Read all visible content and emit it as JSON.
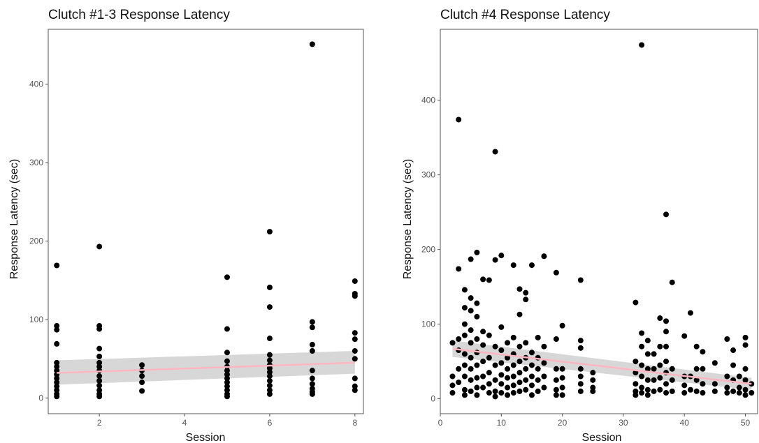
{
  "chart_data": [
    {
      "type": "scatter",
      "title": "Clutch #1-3 Response Latency",
      "xlabel": "Session",
      "ylabel": "Response Latency (sec)",
      "xlim": [
        0.8,
        8.2
      ],
      "ylim": [
        -20,
        470
      ],
      "xticks": [
        2,
        4,
        6,
        8
      ],
      "yticks": [
        0,
        100,
        200,
        300,
        400
      ],
      "grid": false,
      "trend": {
        "x": [
          1,
          8
        ],
        "y": [
          32,
          45
        ],
        "ci_low": [
          17,
          31
        ],
        "ci_high": [
          48,
          60
        ]
      },
      "points": [
        [
          1,
          169
        ],
        [
          1,
          92
        ],
        [
          1,
          87
        ],
        [
          1,
          69
        ],
        [
          1,
          45
        ],
        [
          1,
          40
        ],
        [
          1,
          35
        ],
        [
          1,
          30
        ],
        [
          1,
          25
        ],
        [
          1,
          20
        ],
        [
          1,
          15
        ],
        [
          1,
          10
        ],
        [
          1,
          5
        ],
        [
          1,
          2
        ],
        [
          2,
          193
        ],
        [
          2,
          92
        ],
        [
          2,
          88
        ],
        [
          2,
          63
        ],
        [
          2,
          53
        ],
        [
          2,
          45
        ],
        [
          2,
          40
        ],
        [
          2,
          35
        ],
        [
          2,
          28
        ],
        [
          2,
          22
        ],
        [
          2,
          16
        ],
        [
          2,
          10
        ],
        [
          2,
          5
        ],
        [
          2,
          2
        ],
        [
          3,
          42
        ],
        [
          3,
          35
        ],
        [
          3,
          28
        ],
        [
          3,
          20
        ],
        [
          3,
          9
        ],
        [
          5,
          154
        ],
        [
          5,
          88
        ],
        [
          5,
          58
        ],
        [
          5,
          47
        ],
        [
          5,
          40
        ],
        [
          5,
          35
        ],
        [
          5,
          30
        ],
        [
          5,
          25
        ],
        [
          5,
          20
        ],
        [
          5,
          15
        ],
        [
          5,
          10
        ],
        [
          5,
          5
        ],
        [
          5,
          2
        ],
        [
          6,
          212
        ],
        [
          6,
          141
        ],
        [
          6,
          116
        ],
        [
          6,
          76
        ],
        [
          6,
          55
        ],
        [
          6,
          48
        ],
        [
          6,
          42
        ],
        [
          6,
          38
        ],
        [
          6,
          33
        ],
        [
          6,
          28
        ],
        [
          6,
          22
        ],
        [
          6,
          16
        ],
        [
          6,
          10
        ],
        [
          6,
          5
        ],
        [
          7,
          451
        ],
        [
          7,
          97
        ],
        [
          7,
          90
        ],
        [
          7,
          68
        ],
        [
          7,
          60
        ],
        [
          7,
          35
        ],
        [
          7,
          25
        ],
        [
          7,
          18
        ],
        [
          7,
          12
        ],
        [
          7,
          8
        ],
        [
          7,
          5
        ],
        [
          8,
          149
        ],
        [
          8,
          133
        ],
        [
          8,
          130
        ],
        [
          8,
          83
        ],
        [
          8,
          75
        ],
        [
          8,
          60
        ],
        [
          8,
          50
        ],
        [
          8,
          25
        ],
        [
          8,
          15
        ],
        [
          8,
          10
        ]
      ]
    },
    {
      "type": "scatter",
      "title": "Clutch #4 Response Latency",
      "xlabel": "Session",
      "ylabel": "Response Latency (sec)",
      "xlim": [
        0,
        52
      ],
      "ylim": [
        -20,
        495
      ],
      "xticks": [
        0,
        10,
        20,
        30,
        40,
        50
      ],
      "yticks": [
        0,
        100,
        200,
        300,
        400
      ],
      "grid": false,
      "trend": {
        "x": [
          2,
          51
        ],
        "y": [
          67,
          20
        ],
        "ci_low": [
          56,
          12
        ],
        "ci_high": [
          78,
          28
        ]
      },
      "points": [
        [
          2,
          75
        ],
        [
          2,
          30
        ],
        [
          2,
          18
        ],
        [
          2,
          8
        ],
        [
          3,
          374
        ],
        [
          3,
          174
        ],
        [
          3,
          80
        ],
        [
          3,
          65
        ],
        [
          3,
          40
        ],
        [
          3,
          22
        ],
        [
          4,
          146
        ],
        [
          4,
          122
        ],
        [
          4,
          100
        ],
        [
          4,
          85
        ],
        [
          4,
          60
        ],
        [
          4,
          45
        ],
        [
          4,
          30
        ],
        [
          4,
          12
        ],
        [
          4,
          5
        ],
        [
          5,
          187
        ],
        [
          5,
          135
        ],
        [
          5,
          118
        ],
        [
          5,
          92
        ],
        [
          5,
          75
        ],
        [
          5,
          55
        ],
        [
          5,
          40
        ],
        [
          5,
          25
        ],
        [
          5,
          10
        ],
        [
          6,
          196
        ],
        [
          6,
          128
        ],
        [
          6,
          110
        ],
        [
          6,
          80
        ],
        [
          6,
          62
        ],
        [
          6,
          45
        ],
        [
          6,
          28
        ],
        [
          6,
          15
        ],
        [
          6,
          5
        ],
        [
          7,
          160
        ],
        [
          7,
          90
        ],
        [
          7,
          72
        ],
        [
          7,
          50
        ],
        [
          7,
          30
        ],
        [
          7,
          15
        ],
        [
          8,
          159
        ],
        [
          8,
          85
        ],
        [
          8,
          55
        ],
        [
          8,
          35
        ],
        [
          8,
          20
        ],
        [
          8,
          8
        ],
        [
          9,
          331
        ],
        [
          9,
          186
        ],
        [
          9,
          70
        ],
        [
          9,
          45
        ],
        [
          9,
          25
        ],
        [
          9,
          10
        ],
        [
          9,
          3
        ],
        [
          10,
          192
        ],
        [
          10,
          96
        ],
        [
          10,
          65
        ],
        [
          10,
          48
        ],
        [
          10,
          32
        ],
        [
          10,
          20
        ],
        [
          10,
          8
        ],
        [
          11,
          75
        ],
        [
          11,
          55
        ],
        [
          11,
          40
        ],
        [
          11,
          28
        ],
        [
          11,
          15
        ],
        [
          11,
          5
        ],
        [
          12,
          179
        ],
        [
          12,
          82
        ],
        [
          12,
          60
        ],
        [
          12,
          45
        ],
        [
          12,
          30
        ],
        [
          12,
          18
        ],
        [
          12,
          8
        ],
        [
          13,
          147
        ],
        [
          13,
          113
        ],
        [
          13,
          70
        ],
        [
          13,
          50
        ],
        [
          13,
          35
        ],
        [
          13,
          22
        ],
        [
          13,
          10
        ],
        [
          14,
          142
        ],
        [
          14,
          133
        ],
        [
          14,
          75
        ],
        [
          14,
          55
        ],
        [
          14,
          40
        ],
        [
          14,
          25
        ],
        [
          14,
          12
        ],
        [
          15,
          179
        ],
        [
          15,
          62
        ],
        [
          15,
          45
        ],
        [
          15,
          30
        ],
        [
          15,
          18
        ],
        [
          15,
          5
        ],
        [
          16,
          82
        ],
        [
          16,
          55
        ],
        [
          16,
          40
        ],
        [
          16,
          25
        ],
        [
          16,
          10
        ],
        [
          17,
          191
        ],
        [
          17,
          70
        ],
        [
          17,
          48
        ],
        [
          17,
          30
        ],
        [
          17,
          15
        ],
        [
          19,
          169
        ],
        [
          19,
          80
        ],
        [
          19,
          40
        ],
        [
          19,
          25
        ],
        [
          19,
          12
        ],
        [
          19,
          5
        ],
        [
          20,
          98
        ],
        [
          20,
          40
        ],
        [
          20,
          28
        ],
        [
          20,
          15
        ],
        [
          20,
          5
        ],
        [
          23,
          159
        ],
        [
          23,
          78
        ],
        [
          23,
          68
        ],
        [
          23,
          40
        ],
        [
          23,
          30
        ],
        [
          23,
          20
        ],
        [
          23,
          10
        ],
        [
          25,
          35
        ],
        [
          25,
          25
        ],
        [
          25,
          15
        ],
        [
          25,
          10
        ],
        [
          32,
          129
        ],
        [
          32,
          50
        ],
        [
          32,
          35
        ],
        [
          32,
          20
        ],
        [
          32,
          10
        ],
        [
          32,
          5
        ],
        [
          33,
          474
        ],
        [
          33,
          88
        ],
        [
          33,
          70
        ],
        [
          33,
          45
        ],
        [
          33,
          30
        ],
        [
          33,
          15
        ],
        [
          33,
          8
        ],
        [
          34,
          78
        ],
        [
          34,
          60
        ],
        [
          34,
          40
        ],
        [
          34,
          25
        ],
        [
          34,
          12
        ],
        [
          34,
          5
        ],
        [
          35,
          60
        ],
        [
          35,
          40
        ],
        [
          35,
          25
        ],
        [
          35,
          10
        ],
        [
          36,
          108
        ],
        [
          36,
          70
        ],
        [
          36,
          45
        ],
        [
          36,
          28
        ],
        [
          36,
          12
        ],
        [
          37,
          247
        ],
        [
          37,
          104
        ],
        [
          37,
          90
        ],
        [
          37,
          70
        ],
        [
          37,
          50
        ],
        [
          37,
          35
        ],
        [
          37,
          20
        ],
        [
          37,
          8
        ],
        [
          38,
          156
        ],
        [
          38,
          40
        ],
        [
          38,
          25
        ],
        [
          38,
          10
        ],
        [
          40,
          84
        ],
        [
          40,
          30
        ],
        [
          40,
          18
        ],
        [
          40,
          8
        ],
        [
          41,
          115
        ],
        [
          41,
          30
        ],
        [
          41,
          12
        ],
        [
          42,
          70
        ],
        [
          42,
          40
        ],
        [
          42,
          25
        ],
        [
          42,
          10
        ],
        [
          43,
          63
        ],
        [
          43,
          40
        ],
        [
          43,
          20
        ],
        [
          43,
          8
        ],
        [
          45,
          48
        ],
        [
          45,
          20
        ],
        [
          45,
          10
        ],
        [
          47,
          80
        ],
        [
          47,
          30
        ],
        [
          47,
          15
        ],
        [
          47,
          8
        ],
        [
          48,
          65
        ],
        [
          48,
          45
        ],
        [
          48,
          25
        ],
        [
          48,
          10
        ],
        [
          49,
          30
        ],
        [
          49,
          15
        ],
        [
          49,
          8
        ],
        [
          50,
          82
        ],
        [
          50,
          72
        ],
        [
          50,
          40
        ],
        [
          50,
          25
        ],
        [
          50,
          12
        ],
        [
          50,
          5
        ],
        [
          51,
          20
        ],
        [
          51,
          8
        ]
      ]
    }
  ]
}
